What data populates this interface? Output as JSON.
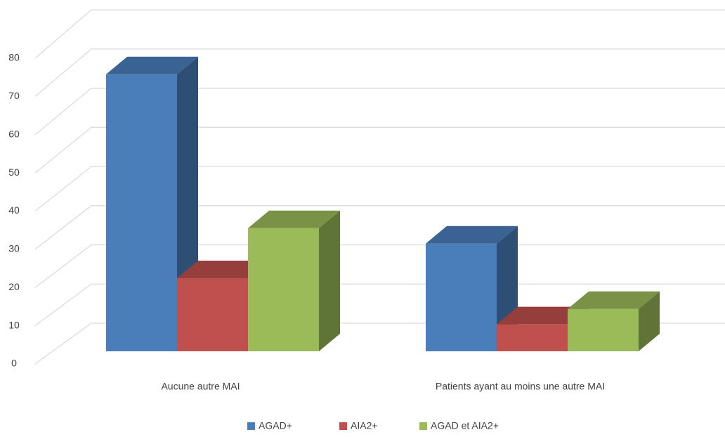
{
  "chart_data": {
    "type": "bar3d",
    "categories": [
      "Aucune autre MAI",
      "Patients ayant au moins une autre MAI"
    ],
    "series": [
      {
        "name": "AGAD+",
        "color": "#4a7ebb",
        "values": [
          72,
          28
        ]
      },
      {
        "name": "AIA2+",
        "color": "#c0504d",
        "values": [
          19,
          7
        ]
      },
      {
        "name": "AGAD et AIA2+",
        "color": "#9bbb59",
        "values": [
          32,
          11
        ]
      }
    ],
    "ylim": [
      0,
      80
    ],
    "yticks": [
      0,
      10,
      20,
      30,
      40,
      50,
      60,
      70,
      80
    ],
    "grid": true,
    "legend": "bottom"
  }
}
